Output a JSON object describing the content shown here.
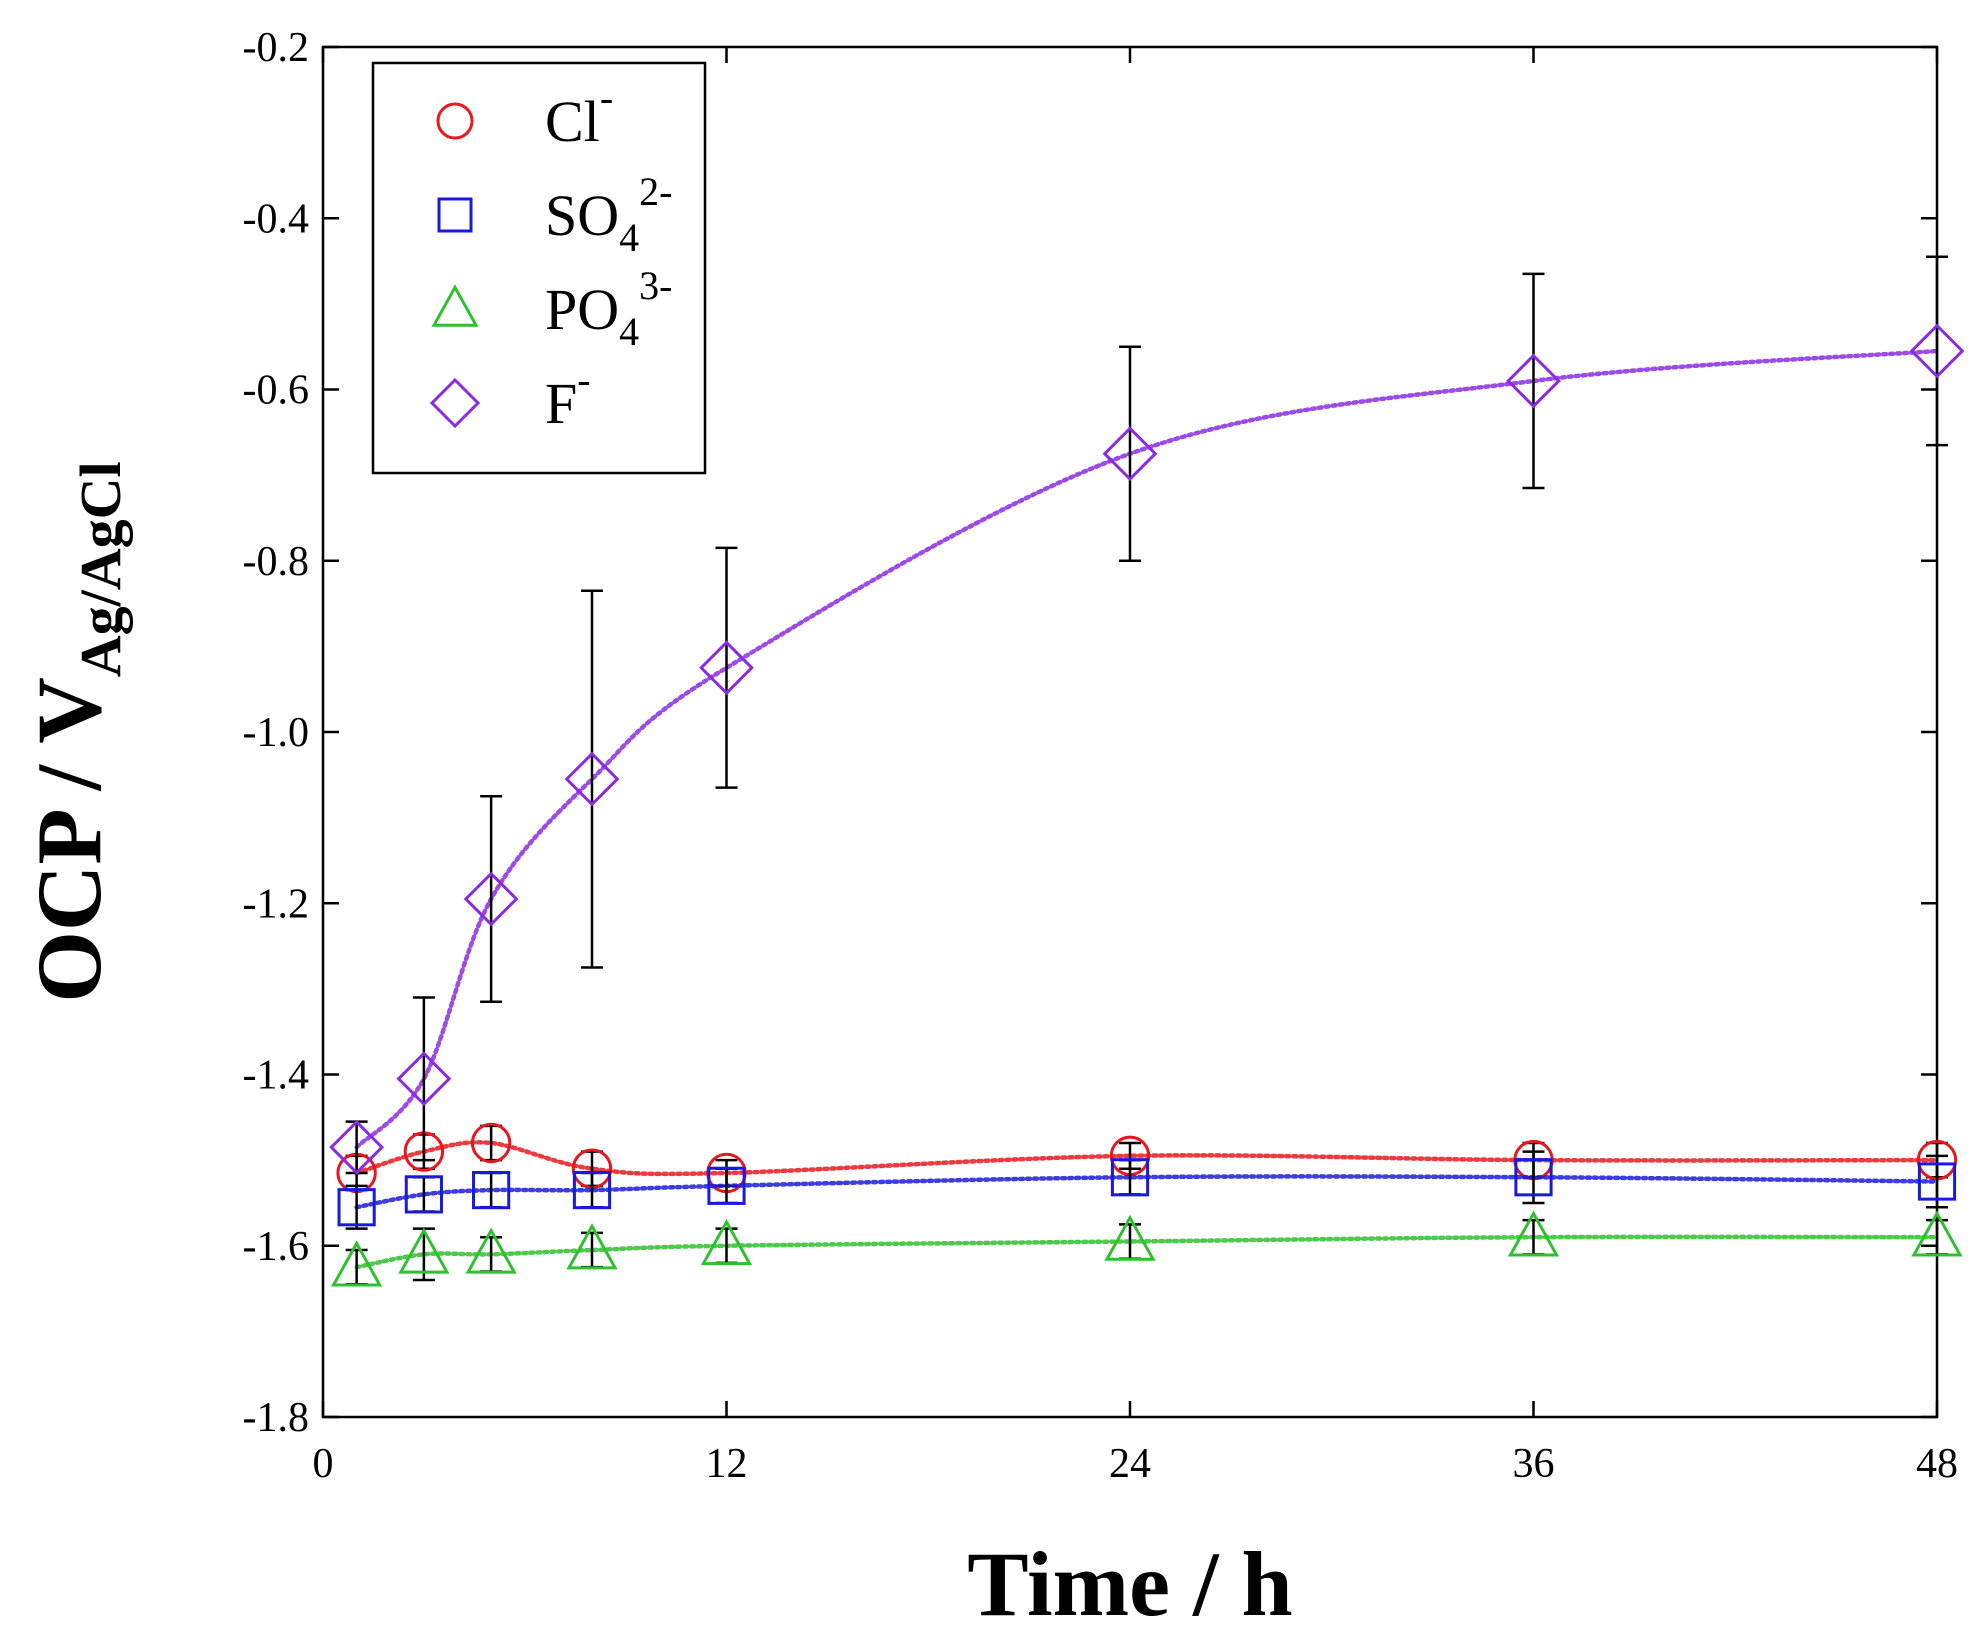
{
  "chart_data": {
    "type": "scatter",
    "title": "",
    "xlabel": "Time / h",
    "ylabel": {
      "main": "OCP / V",
      "subscript": "Ag/AgCl"
    },
    "xlim": [
      0,
      48
    ],
    "ylim": [
      -1.8,
      -0.2
    ],
    "xticks": [
      0,
      12,
      24,
      36,
      48
    ],
    "xtick_labels": [
      "0",
      "12",
      "24",
      "36",
      "48"
    ],
    "yticks": [
      -1.8,
      -1.6,
      -1.4,
      -1.2,
      -1.0,
      -0.8,
      -0.6,
      -0.4,
      -0.2
    ],
    "ytick_labels": [
      "-1.8",
      "-1.6",
      "-1.4",
      "-1.2",
      "-1.0",
      "-0.8",
      "-0.6",
      "-0.4",
      "-0.2"
    ],
    "legend_position": "top-left",
    "series": [
      {
        "name": "Cl-",
        "label_base": "Cl",
        "label_sub": "",
        "label_sup": "-",
        "marker": "circle",
        "color": "#e8171f",
        "x": [
          1,
          3,
          5,
          8,
          12,
          24,
          36,
          48
        ],
        "y": [
          -1.515,
          -1.49,
          -1.48,
          -1.51,
          -1.515,
          -1.495,
          -1.5,
          -1.5
        ],
        "err": [
          0.02,
          0.02,
          0.02,
          0.02,
          0.015,
          0.015,
          0.02,
          0.02
        ]
      },
      {
        "name": "SO42-",
        "label_base": "SO",
        "label_sub": "4",
        "label_sup": "2-",
        "marker": "square",
        "color": "#1a1adc",
        "x": [
          1,
          3,
          5,
          8,
          12,
          24,
          36,
          48
        ],
        "y": [
          -1.555,
          -1.54,
          -1.535,
          -1.535,
          -1.53,
          -1.52,
          -1.52,
          -1.525
        ],
        "err": [
          0.025,
          0.02,
          0.02,
          0.02,
          0.02,
          0.02,
          0.03,
          0.03
        ]
      },
      {
        "name": "PO43-",
        "label_base": "PO",
        "label_sub": "4",
        "label_sup": "3-",
        "marker": "triangle",
        "color": "#2fc02f",
        "x": [
          1,
          3,
          5,
          8,
          12,
          24,
          36,
          48
        ],
        "y": [
          -1.625,
          -1.61,
          -1.61,
          -1.605,
          -1.6,
          -1.595,
          -1.59,
          -1.59
        ],
        "err": [
          0.02,
          0.03,
          0.02,
          0.02,
          0.02,
          0.02,
          0.02,
          0.02
        ]
      },
      {
        "name": "F-",
        "label_base": "F",
        "label_sub": "",
        "label_sup": "-",
        "marker": "diamond",
        "color": "#8a2be2",
        "x": [
          1,
          3,
          5,
          8,
          12,
          24,
          36,
          48
        ],
        "y": [
          -1.485,
          -1.405,
          -1.195,
          -1.055,
          -0.925,
          -0.675,
          -0.59,
          -0.555
        ],
        "err": [
          0.03,
          0.095,
          0.12,
          0.22,
          0.14,
          0.125,
          0.125,
          0.11
        ]
      }
    ]
  }
}
